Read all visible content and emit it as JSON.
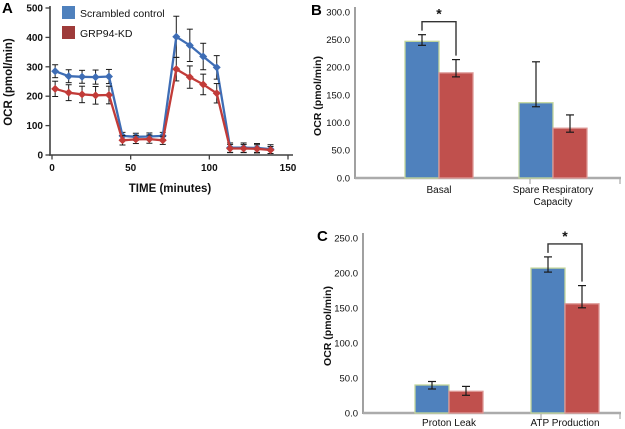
{
  "figure": {
    "panels": {
      "a": {
        "letter": "A"
      },
      "b": {
        "letter": "B"
      },
      "c": {
        "letter": "C"
      }
    },
    "legend": {
      "items": [
        {
          "label": "Scrambled control",
          "color": "#4F81BD"
        },
        {
          "label": "GRP94-KD",
          "color": "#9E3B3A"
        }
      ]
    },
    "colors": {
      "line_blue": "#3E6DB5",
      "line_red": "#C23B38",
      "bar_blue": "#4F81BD",
      "bar_red": "#C0504D",
      "bar_blue_border": "#C3D69B",
      "bar_red_border": "#DD9895",
      "error_bar": "#1a1a1a",
      "axis_dark": "#404040",
      "axis_gray": "#ABABAB",
      "axis_y_bar": "#6E6E6E",
      "bracket": "#333333"
    }
  },
  "chart_data": [
    {
      "id": "A",
      "type": "line",
      "panel": "A",
      "xlabel": "TIME (minutes)",
      "ylabel": "OCR (pmol/min)",
      "xlim": [
        0,
        150
      ],
      "ylim": [
        0,
        500
      ],
      "xticks": [
        0,
        50,
        100,
        150
      ],
      "yticks": [
        0,
        100,
        200,
        300,
        400,
        500
      ],
      "legend_position": "top-left",
      "x": [
        2,
        10.6,
        19.1,
        27.7,
        36.2,
        44.8,
        53.3,
        61.9,
        70.4,
        79,
        87.6,
        96.1,
        104.7,
        113.2,
        121.8,
        130.3,
        138.9
      ],
      "series": [
        {
          "name": "Scrambled control",
          "color": "#3E6DB5",
          "values": [
            285,
            268,
            266,
            265,
            267,
            65,
            62,
            63,
            65,
            402,
            373,
            335,
            298,
            25,
            25,
            24,
            20
          ],
          "errors": [
            22,
            22,
            22,
            24,
            24,
            12,
            12,
            12,
            12,
            70,
            55,
            45,
            40,
            16,
            16,
            15,
            15
          ]
        },
        {
          "name": "GRP94-KD",
          "color": "#C23B38",
          "values": [
            225,
            212,
            206,
            203,
            204,
            50,
            53,
            54,
            50,
            292,
            265,
            240,
            210,
            22,
            22,
            21,
            17
          ],
          "errors": [
            26,
            27,
            28,
            30,
            30,
            16,
            14,
            14,
            14,
            40,
            38,
            35,
            33,
            14,
            14,
            14,
            12
          ]
        }
      ]
    },
    {
      "id": "B",
      "type": "bar",
      "panel": "B",
      "ylabel": "OCR (pmol/min)",
      "ylim": [
        0,
        300
      ],
      "ytick_labels": [
        "0.0",
        "50.0",
        "100.0",
        "150.0",
        "200.0",
        "250.0",
        "300.0"
      ],
      "categories": [
        "Basal",
        "Spare Respiratory Capacity"
      ],
      "category_label_lines": [
        [
          "Basal"
        ],
        [
          "Spare Respiratory",
          "Capacity"
        ]
      ],
      "series": [
        {
          "name": "Scrambled control",
          "color": "#4F81BD",
          "values": [
            247,
            136
          ],
          "errors": [
            12,
            74
          ]
        },
        {
          "name": "GRP94-KD",
          "color": "#C0504D",
          "values": [
            190,
            90
          ],
          "errors": [
            24,
            24
          ]
        }
      ],
      "significance": [
        {
          "pair_index": 0,
          "symbol": "*"
        }
      ]
    },
    {
      "id": "C",
      "type": "bar",
      "panel": "C",
      "ylabel": "OCR (pmol/min)",
      "ylim": [
        0,
        250
      ],
      "ytick_labels": [
        "0.0",
        "50.0",
        "100.0",
        "150.0",
        "200.0",
        "250.0"
      ],
      "categories": [
        "Proton Leak",
        "ATP Production"
      ],
      "category_label_lines": [
        [
          "Proton Leak"
        ],
        [
          "ATP Production"
        ]
      ],
      "series": [
        {
          "name": "Scrambled control",
          "color": "#4F81BD",
          "values": [
            40,
            207
          ],
          "errors": [
            5,
            16
          ]
        },
        {
          "name": "GRP94-KD",
          "color": "#C0504D",
          "values": [
            31,
            156
          ],
          "errors": [
            7,
            26
          ]
        }
      ],
      "significance": [
        {
          "pair_index": 1,
          "symbol": "*"
        }
      ]
    }
  ]
}
